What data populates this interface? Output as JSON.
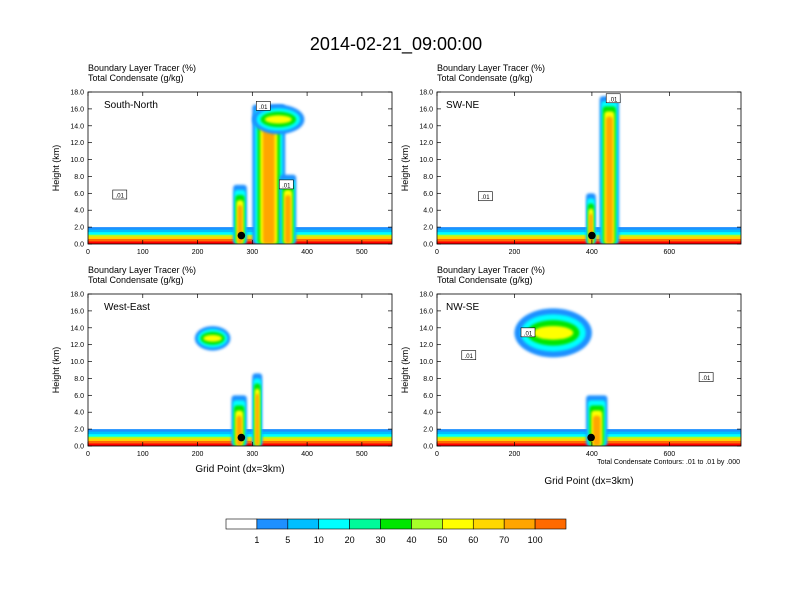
{
  "title": "2014-02-21_09:00:00",
  "chart_data": [
    {
      "type": "heatmap",
      "panel_title": "South-North",
      "subtitle_line1": "Boundary Layer Tracer   (%)",
      "subtitle_line2": "Total Condensate   (g/kg)",
      "ylabel": "Height (km)",
      "xlabel": "",
      "xlim": [
        0,
        555
      ],
      "ylim": [
        0,
        18
      ],
      "xticks": [
        "0",
        "100",
        "200",
        "300",
        "400",
        "500"
      ],
      "xtick_values": [
        0,
        100,
        200,
        300,
        400,
        500
      ],
      "yticks": [
        "0.0",
        "2.0",
        "4.0",
        "6.0",
        "8.0",
        "10.0",
        "12.0",
        "14.0",
        "16.0",
        "18.0"
      ],
      "marker": {
        "x": 280,
        "y": 1.0
      },
      "contour_labels": [
        {
          "text": ".01",
          "x": 58,
          "y": 5.8
        },
        {
          "text": ".01",
          "x": 320,
          "y": 16.3
        },
        {
          "text": ".01",
          "x": 362,
          "y": 7.0
        }
      ],
      "plumes": [
        {
          "x0": 265,
          "x1": 290,
          "top": 7.0
        },
        {
          "x0": 300,
          "x1": 360,
          "top": 16.5
        },
        {
          "x0": 350,
          "x1": 380,
          "top": 8.2
        }
      ],
      "anvils": [
        {
          "x0": 300,
          "x1": 395,
          "y0": 13.0,
          "y1": 16.5
        }
      ]
    },
    {
      "type": "heatmap",
      "panel_title": "SW-NE",
      "subtitle_line1": "Boundary Layer Tracer   (%)",
      "subtitle_line2": "Total Condensate   (g/kg)",
      "ylabel": "Height (km)",
      "xlabel": "",
      "xlim": [
        0,
        785
      ],
      "ylim": [
        0,
        18
      ],
      "xticks": [
        "0",
        "200",
        "400",
        "600"
      ],
      "xtick_values": [
        0,
        200,
        400,
        600
      ],
      "yticks": [
        "0.0",
        "2.0",
        "4.0",
        "6.0",
        "8.0",
        "10.0",
        "12.0",
        "14.0",
        "16.0",
        "18.0"
      ],
      "marker": {
        "x": 400,
        "y": 1.0
      },
      "contour_labels": [
        {
          "text": ".01",
          "x": 125,
          "y": 5.6
        },
        {
          "text": ".01",
          "x": 455,
          "y": 17.2
        }
      ],
      "plumes": [
        {
          "x0": 385,
          "x1": 410,
          "top": 6.0
        },
        {
          "x0": 420,
          "x1": 470,
          "top": 17.5
        }
      ],
      "anvils": []
    },
    {
      "type": "heatmap",
      "panel_title": "West-East",
      "subtitle_line1": "Boundary Layer Tracer   (%)",
      "subtitle_line2": "Total Condensate   (g/kg)",
      "ylabel": "Height (km)",
      "xlabel": "Grid Point (dx=3km)",
      "xlim": [
        0,
        555
      ],
      "ylim": [
        0,
        18
      ],
      "xticks": [
        "0",
        "100",
        "200",
        "300",
        "400",
        "500"
      ],
      "xtick_values": [
        0,
        100,
        200,
        300,
        400,
        500
      ],
      "yticks": [
        "0.0",
        "2.0",
        "4.0",
        "6.0",
        "8.0",
        "10.0",
        "12.0",
        "14.0",
        "16.0",
        "18.0"
      ],
      "marker": {
        "x": 280,
        "y": 1.0
      },
      "contour_labels": [],
      "plumes": [
        {
          "x0": 262,
          "x1": 290,
          "top": 6.0
        },
        {
          "x0": 300,
          "x1": 318,
          "top": 8.6
        }
      ],
      "anvils": [
        {
          "x0": 195,
          "x1": 260,
          "y0": 11.3,
          "y1": 14.2
        }
      ]
    },
    {
      "type": "heatmap",
      "panel_title": "NW-SE",
      "subtitle_line1": "Boundary Layer Tracer   (%)",
      "subtitle_line2": "Total Condensate   (g/kg)",
      "ylabel": "Height (km)",
      "xlabel": "Grid Point (dx=3km)",
      "xlim": [
        0,
        785
      ],
      "ylim": [
        0,
        18
      ],
      "xticks": [
        "0",
        "200",
        "400",
        "600"
      ],
      "xtick_values": [
        0,
        200,
        400,
        600
      ],
      "yticks": [
        "0.0",
        "2.0",
        "4.0",
        "6.0",
        "8.0",
        "10.0",
        "12.0",
        "14.0",
        "16.0",
        "18.0"
      ],
      "marker": {
        "x": 398,
        "y": 1.0
      },
      "contour_labels": [
        {
          "text": ".01",
          "x": 82,
          "y": 10.7
        },
        {
          "text": ".01",
          "x": 235,
          "y": 13.4
        },
        {
          "text": ".01",
          "x": 695,
          "y": 8.1
        }
      ],
      "plumes": [
        {
          "x0": 385,
          "x1": 440,
          "top": 6.0
        }
      ],
      "anvils": [
        {
          "x0": 200,
          "x1": 400,
          "y0": 10.5,
          "y1": 16.3
        }
      ],
      "footnote": "Total Condensate Contours: .01 to .01 by .000"
    }
  ],
  "colorbar": {
    "labels": [
      "1",
      "5",
      "10",
      "20",
      "30",
      "40",
      "50",
      "60",
      "70",
      "100"
    ],
    "colors": [
      "#ffffff",
      "#1e90ff",
      "#00bfff",
      "#00ffff",
      "#00fa9a",
      "#00e600",
      "#a6ff29",
      "#ffff00",
      "#ffd700",
      "#ffa500",
      "#ff6a00",
      "#ff0000"
    ]
  }
}
